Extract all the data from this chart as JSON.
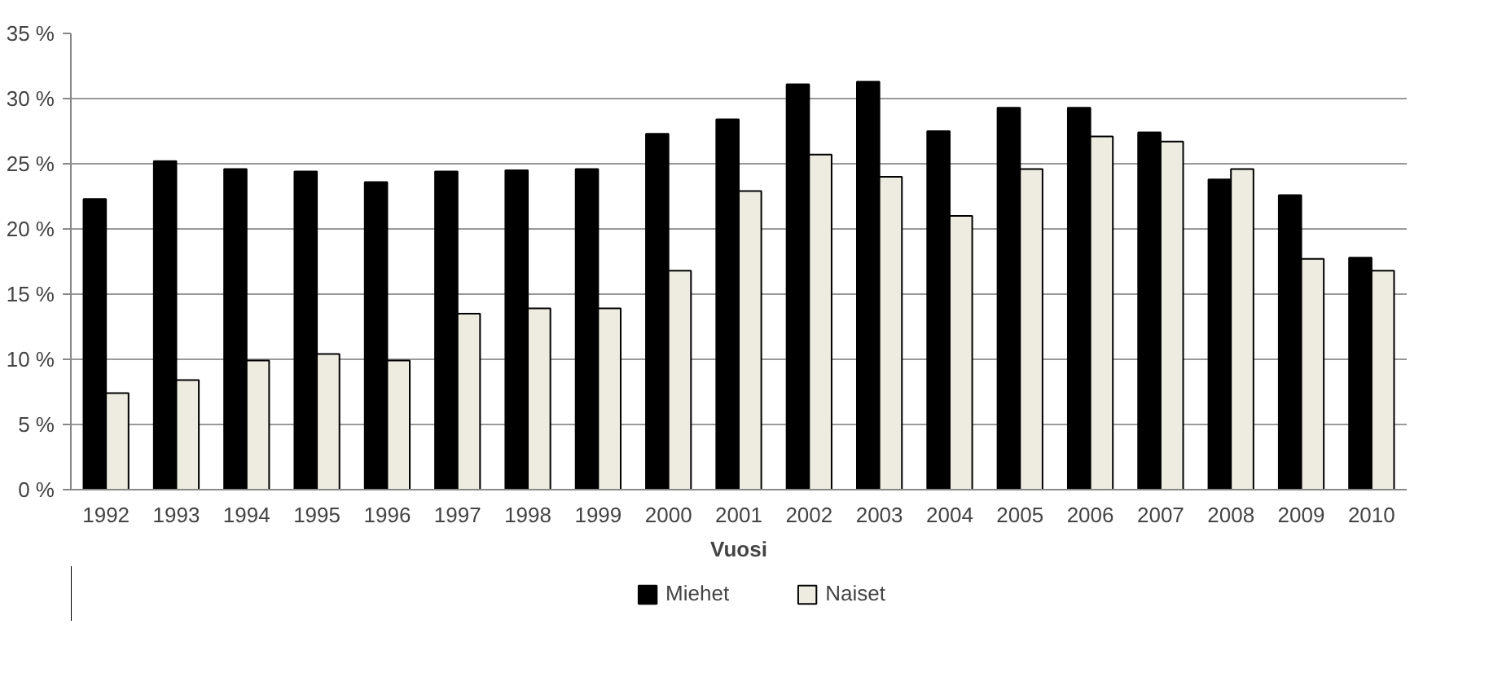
{
  "chart_data": {
    "type": "bar",
    "xlabel": "Vuosi",
    "categories": [
      "1992",
      "1993",
      "1994",
      "1995",
      "1996",
      "1997",
      "1998",
      "1999",
      "2000",
      "2001",
      "2002",
      "2003",
      "2004",
      "2005",
      "2006",
      "2007",
      "2008",
      "2009",
      "2010"
    ],
    "series": [
      {
        "name": "Miehet",
        "color": "#000000",
        "values": [
          22.3,
          25.2,
          24.6,
          24.4,
          23.6,
          24.4,
          24.5,
          24.6,
          27.3,
          28.4,
          31.1,
          31.3,
          27.5,
          29.3,
          29.3,
          27.4,
          23.8,
          22.6,
          17.8
        ]
      },
      {
        "name": "Naiset",
        "color": "#eeece1",
        "values": [
          7.4,
          8.4,
          9.9,
          10.4,
          9.9,
          13.5,
          13.9,
          13.9,
          16.8,
          22.9,
          25.7,
          24.0,
          21.0,
          24.6,
          27.1,
          26.7,
          24.6,
          17.7,
          16.8
        ]
      }
    ],
    "ylim": [
      0,
      35
    ],
    "yticks": [
      {
        "value": 0,
        "label": "0 %"
      },
      {
        "value": 5,
        "label": "5 %"
      },
      {
        "value": 10,
        "label": "10 %"
      },
      {
        "value": 15,
        "label": "15 %"
      },
      {
        "value": 20,
        "label": "20 %"
      },
      {
        "value": 25,
        "label": "25 %"
      },
      {
        "value": 30,
        "label": "30 %"
      },
      {
        "value": 35,
        "label": "35 %"
      }
    ],
    "grid": "y",
    "legend": "bottom"
  }
}
